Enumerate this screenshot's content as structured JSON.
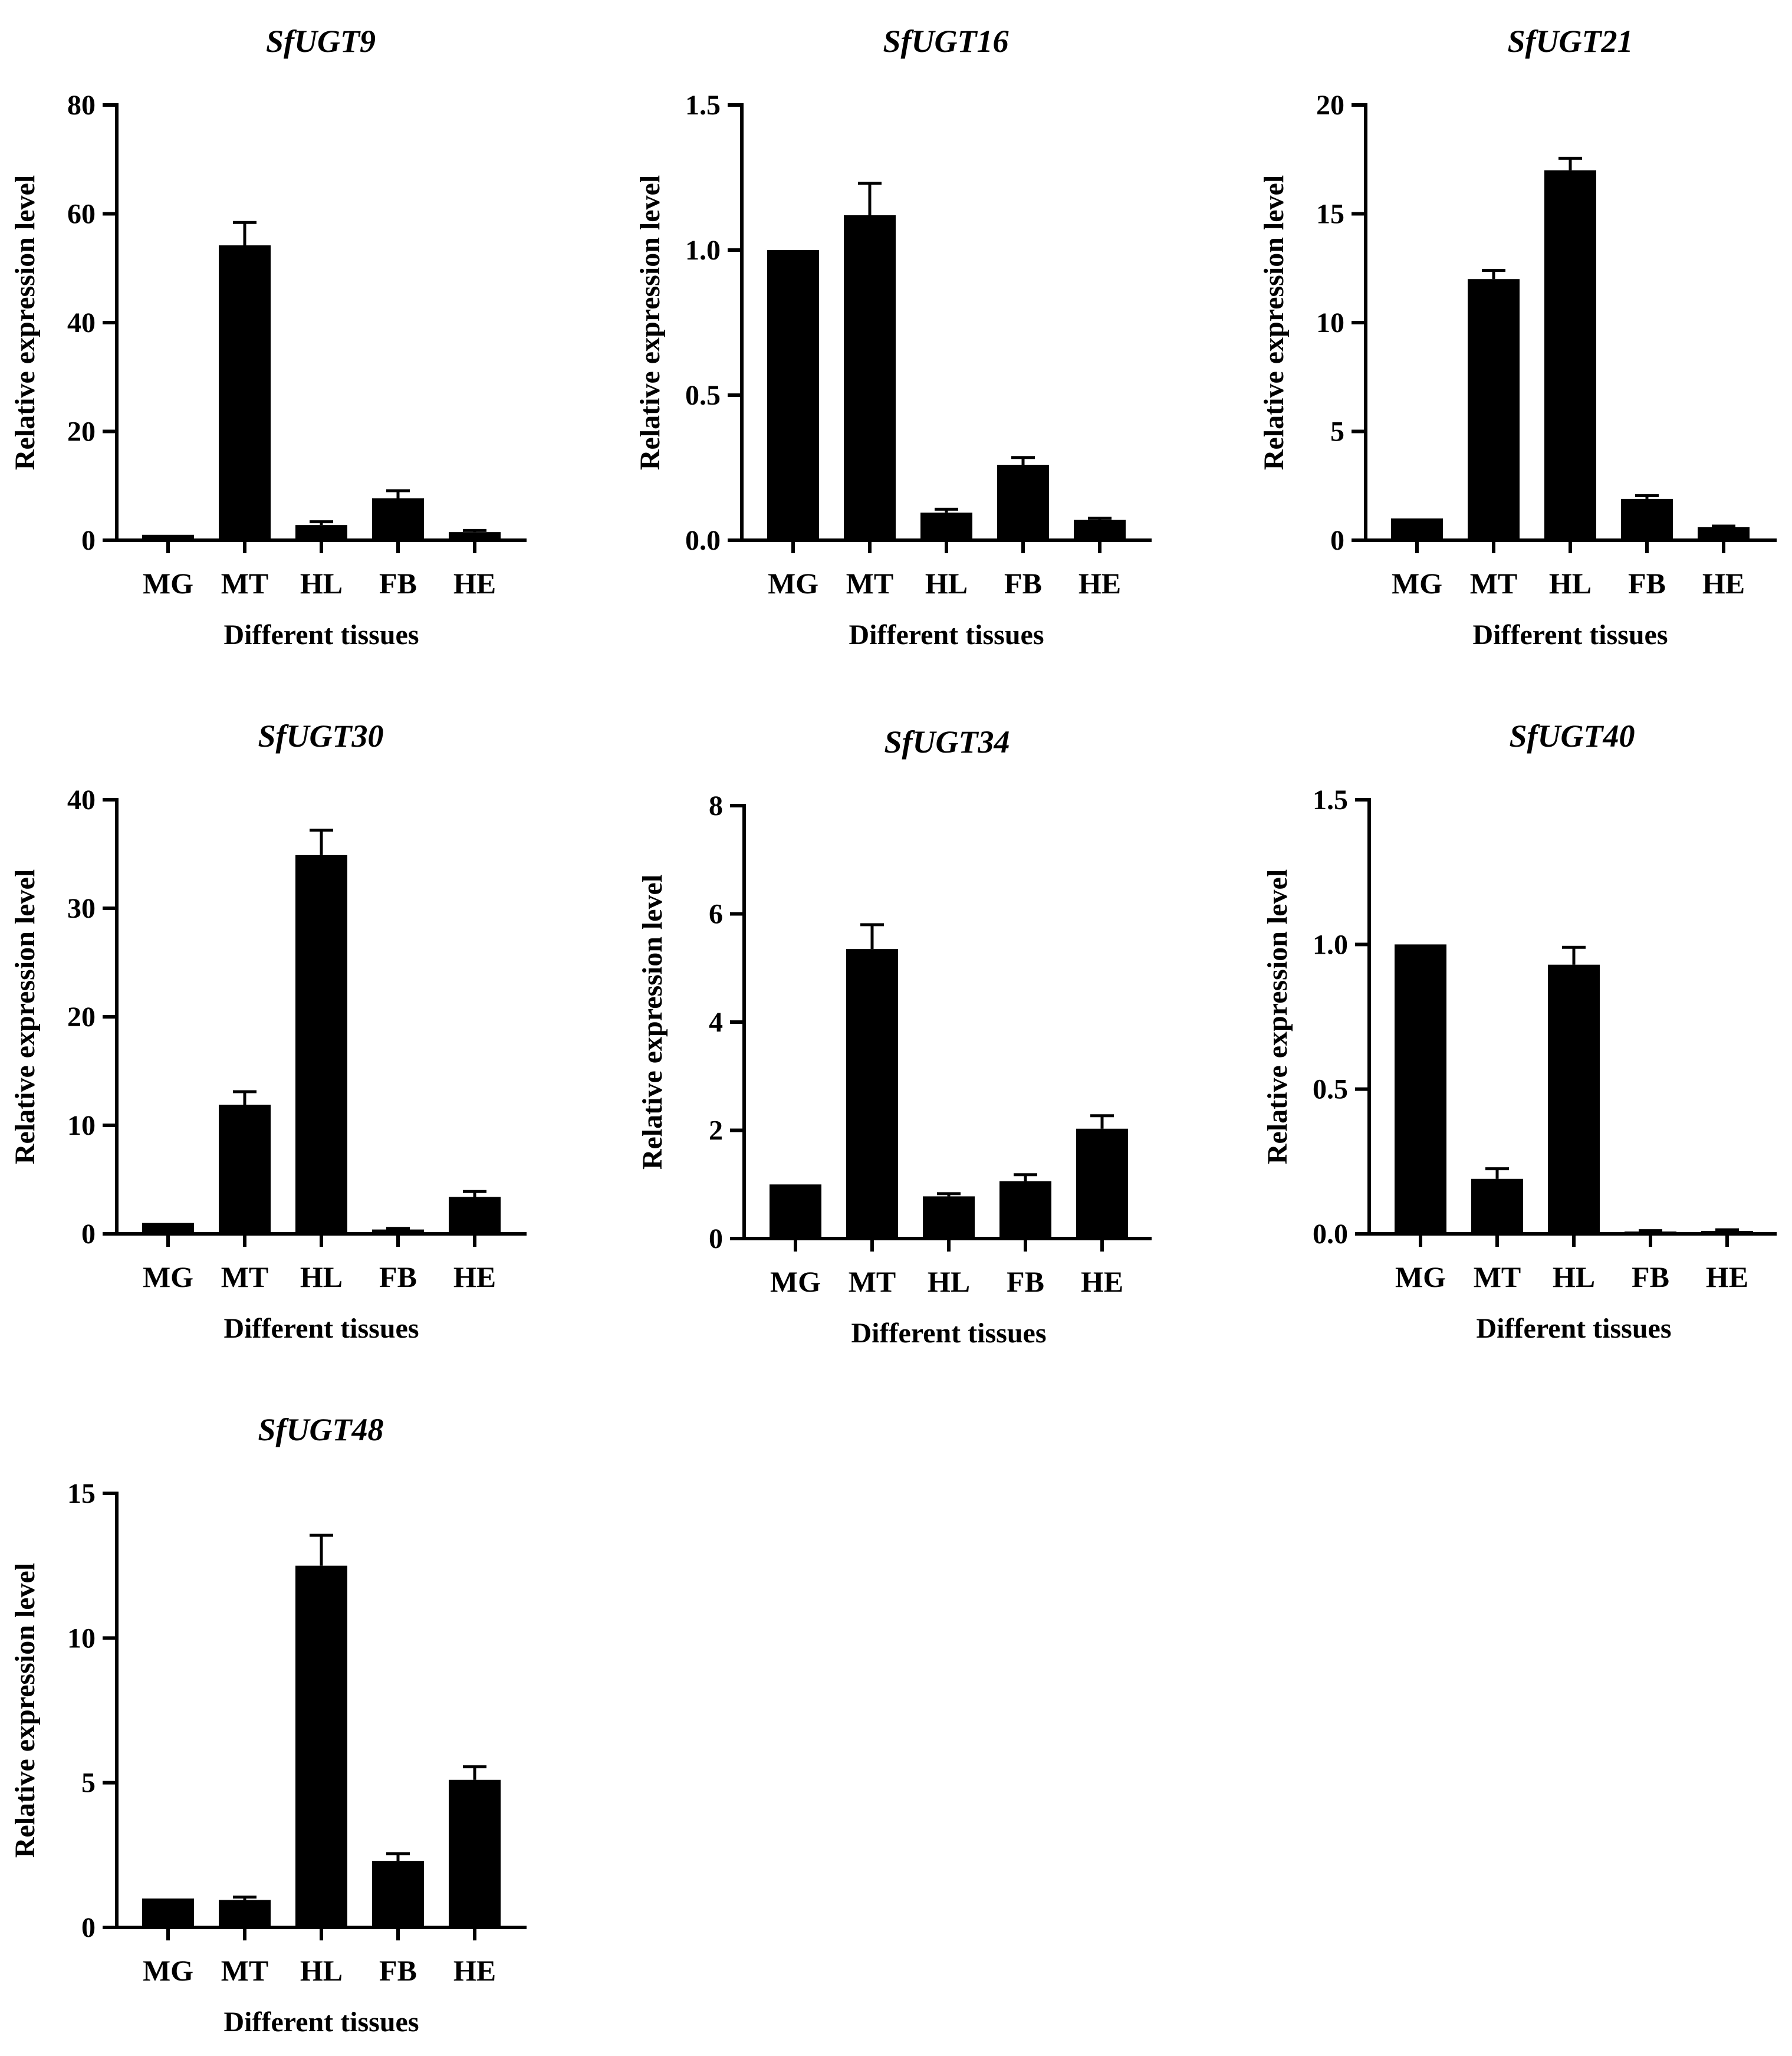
{
  "colors": {
    "bar": "#000000",
    "axis": "#000000",
    "background": "#ffffff"
  },
  "chart_data": [
    {
      "type": "bar",
      "title": "SfUGT9",
      "xlabel": "Different tissues",
      "ylabel": "Relative expression level",
      "categories": [
        "MG",
        "MT",
        "HL",
        "FB",
        "HE"
      ],
      "values": [
        1,
        54.2,
        2.8,
        7.7,
        1.5
      ],
      "errors": [
        0,
        4.2,
        0.6,
        1.4,
        0.3
      ],
      "ylim": [
        0,
        80
      ],
      "yticks": [
        0,
        20,
        40,
        60,
        80
      ],
      "ytick_labels": [
        "0",
        "20",
        "40",
        "60",
        "80"
      ],
      "grid": false
    },
    {
      "type": "bar",
      "title": "SfUGT16",
      "xlabel": "Different tissues",
      "ylabel": "Relative expression level",
      "categories": [
        "MG",
        "MT",
        "HL",
        "FB",
        "HE"
      ],
      "values": [
        1.0,
        1.12,
        0.095,
        0.26,
        0.07
      ],
      "errors": [
        0,
        0.11,
        0.012,
        0.025,
        0.006
      ],
      "ylim": [
        0,
        1.5
      ],
      "yticks": [
        0,
        0.5,
        1.0,
        1.5
      ],
      "ytick_labels": [
        "0.0",
        "0.5",
        "1.0",
        "1.5"
      ],
      "grid": false
    },
    {
      "type": "bar",
      "title": "SfUGT21",
      "xlabel": "Different tissues",
      "ylabel": "Relative expression level",
      "categories": [
        "MG",
        "MT",
        "HL",
        "FB",
        "HE"
      ],
      "values": [
        1,
        12.0,
        17.0,
        1.9,
        0.6
      ],
      "errors": [
        0,
        0.4,
        0.55,
        0.15,
        0.05
      ],
      "ylim": [
        0,
        20
      ],
      "yticks": [
        0,
        5,
        10,
        15,
        20
      ],
      "ytick_labels": [
        "0",
        "5",
        "10",
        "15",
        "20"
      ],
      "grid": false
    },
    {
      "type": "bar",
      "title": "SfUGT30",
      "xlabel": "Different tissues",
      "ylabel": "Relative expression level",
      "categories": [
        "MG",
        "MT",
        "HL",
        "FB",
        "HE"
      ],
      "values": [
        1,
        11.9,
        34.9,
        0.4,
        3.4
      ],
      "errors": [
        0,
        1.2,
        2.3,
        0.1,
        0.5
      ],
      "ylim": [
        0,
        40
      ],
      "yticks": [
        0,
        10,
        20,
        30,
        40
      ],
      "ytick_labels": [
        "0",
        "10",
        "20",
        "30",
        "40"
      ],
      "grid": false
    },
    {
      "type": "bar",
      "title": "SfUGT34",
      "xlabel": "Different tissues",
      "ylabel": "Relative expression level",
      "categories": [
        "MG",
        "MT",
        "HL",
        "FB",
        "HE"
      ],
      "values": [
        1,
        5.35,
        0.78,
        1.06,
        2.03
      ],
      "errors": [
        0,
        0.45,
        0.05,
        0.12,
        0.24
      ],
      "ylim": [
        0,
        8
      ],
      "yticks": [
        0,
        2,
        4,
        6,
        8
      ],
      "ytick_labels": [
        "0",
        "2",
        "4",
        "6",
        "8"
      ],
      "grid": false
    },
    {
      "type": "bar",
      "title": "SfUGT40",
      "xlabel": "Different tissues",
      "ylabel": "Relative expression level",
      "categories": [
        "MG",
        "MT",
        "HL",
        "FB",
        "HE"
      ],
      "values": [
        1.0,
        0.19,
        0.93,
        0.008,
        0.01
      ],
      "errors": [
        0,
        0.035,
        0.06,
        0.003,
        0.004
      ],
      "ylim": [
        0,
        1.5
      ],
      "yticks": [
        0,
        0.5,
        1.0,
        1.5
      ],
      "ytick_labels": [
        "0.0",
        "0.5",
        "1.0",
        "1.5"
      ],
      "grid": false
    },
    {
      "type": "bar",
      "title": "SfUGT48",
      "xlabel": "Different tissues",
      "ylabel": "Relative expression level",
      "categories": [
        "MG",
        "MT",
        "HL",
        "FB",
        "HE"
      ],
      "values": [
        1,
        0.95,
        12.5,
        2.3,
        5.1
      ],
      "errors": [
        0,
        0.1,
        1.05,
        0.25,
        0.45
      ],
      "ylim": [
        0,
        15
      ],
      "yticks": [
        0,
        5,
        10,
        15
      ],
      "ytick_labels": [
        "0",
        "5",
        "10",
        "15"
      ],
      "grid": false
    }
  ]
}
